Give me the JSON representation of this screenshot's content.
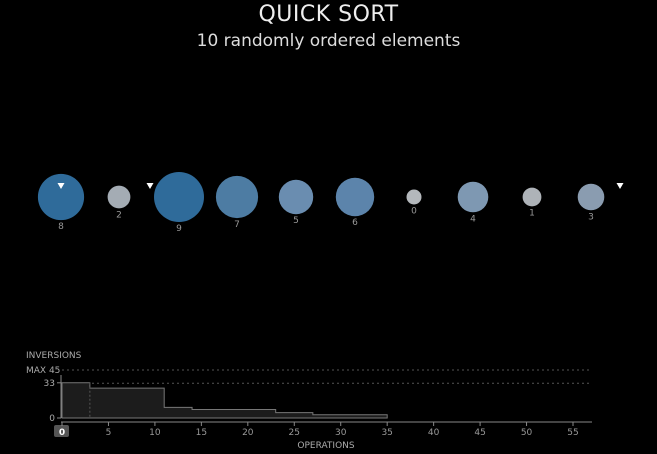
{
  "header": {
    "title": "QUICK SORT",
    "subtitle": "10 randomly ordered elements"
  },
  "elements": [
    {
      "value": 8,
      "color": "#2f6b9a"
    },
    {
      "value": 2,
      "color": "#a4acb4"
    },
    {
      "value": 9,
      "color": "#2f6b9a"
    },
    {
      "value": 7,
      "color": "#4d7ca3"
    },
    {
      "value": 5,
      "color": "#6a8db0"
    },
    {
      "value": 6,
      "color": "#5c84ab"
    },
    {
      "value": 0,
      "color": "#b4b8bc"
    },
    {
      "value": 4,
      "color": "#7e98b2"
    },
    {
      "value": 1,
      "color": "#aeb3b8"
    },
    {
      "value": 3,
      "color": "#8a9cb0"
    }
  ],
  "markers": [
    {
      "slot": 0,
      "position": "inside"
    },
    {
      "slot": 1,
      "position": "after"
    },
    {
      "slot": 9,
      "position": "after"
    }
  ],
  "chart_data": {
    "type": "area",
    "ylabel": "INVERSIONS",
    "xlabel": "OPERATIONS",
    "max_label": "MAX 45",
    "y_ticks": [
      {
        "value": 33,
        "label": "33"
      },
      {
        "value": 0,
        "label": "0"
      }
    ],
    "x_ticks": [
      0,
      5,
      10,
      15,
      20,
      25,
      30,
      35,
      40,
      45,
      50,
      55
    ],
    "xlim": [
      0,
      57
    ],
    "ylim": [
      0,
      45
    ],
    "max_value": 45,
    "current_operation": "0",
    "steps": [
      {
        "x": 0,
        "y": 33
      },
      {
        "x": 3,
        "y": 28
      },
      {
        "x": 11,
        "y": 10
      },
      {
        "x": 14,
        "y": 8
      },
      {
        "x": 23,
        "y": 5
      },
      {
        "x": 27,
        "y": 3
      },
      {
        "x": 35,
        "y": 3
      }
    ]
  }
}
